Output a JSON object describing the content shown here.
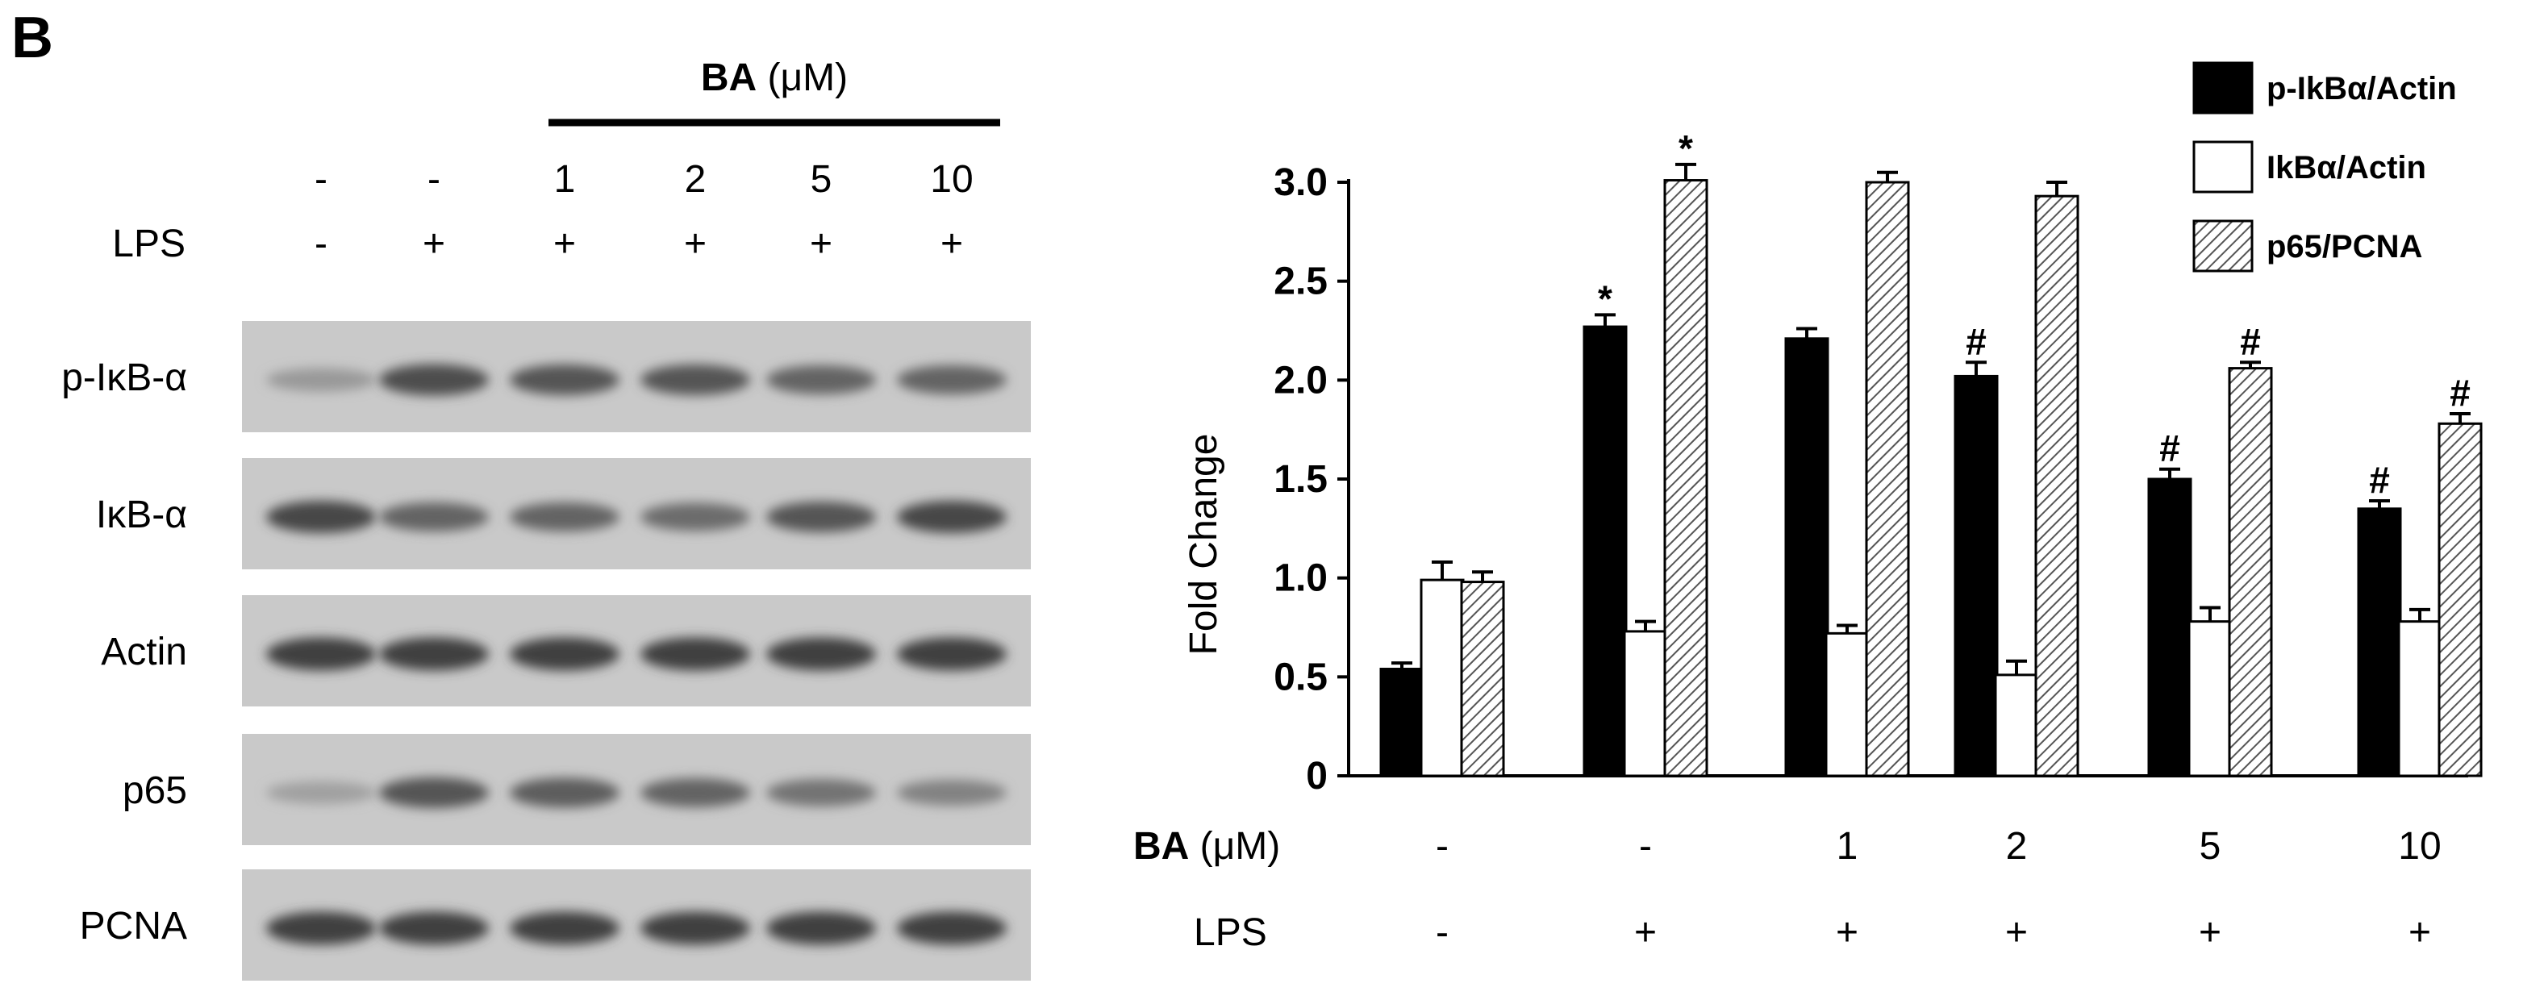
{
  "panel_label": "B",
  "blot": {
    "ba_header": "BA (μM)",
    "ba_values": [
      "-",
      "-",
      "1",
      "2",
      "5",
      "10"
    ],
    "lps_label": "LPS",
    "lps_values": [
      "-",
      "+",
      "+",
      "+",
      "+",
      "+"
    ],
    "rows": [
      {
        "label": "p-IκB-α",
        "intensity": [
          0.25,
          0.75,
          0.7,
          0.7,
          0.6,
          0.6
        ]
      },
      {
        "label": "IκB-α",
        "intensity": [
          0.8,
          0.6,
          0.6,
          0.55,
          0.7,
          0.8
        ]
      },
      {
        "label": "Actin",
        "intensity": [
          0.85,
          0.85,
          0.85,
          0.85,
          0.85,
          0.85
        ]
      },
      {
        "label": "p65",
        "intensity": [
          0.2,
          0.7,
          0.65,
          0.6,
          0.5,
          0.4
        ]
      },
      {
        "label": "PCNA",
        "intensity": [
          0.85,
          0.85,
          0.85,
          0.85,
          0.85,
          0.85
        ]
      }
    ]
  },
  "chart_data": {
    "type": "bar",
    "ylabel": "Fold Change",
    "ylim": [
      0,
      3.0
    ],
    "yticks": [
      "0",
      "0.5",
      "1.0",
      "1.5",
      "2.0",
      "2.5",
      "3.0"
    ],
    "ba_label": "BA (μM)",
    "lps_label": "LPS",
    "ba_categories": [
      "-",
      "-",
      "1",
      "2",
      "5",
      "10"
    ],
    "lps_categories": [
      "-",
      "+",
      "+",
      "+",
      "+",
      "+"
    ],
    "series": [
      {
        "name": "p-IkBα/Actin",
        "fill": "solid",
        "values": [
          0.54,
          2.27,
          2.21,
          2.02,
          1.5,
          1.35
        ],
        "errors": [
          0.03,
          0.06,
          0.05,
          0.07,
          0.05,
          0.04
        ],
        "annotations": [
          "",
          "*",
          "",
          "#",
          "#",
          "#"
        ]
      },
      {
        "name": "IkBα/Actin",
        "fill": "open",
        "values": [
          0.99,
          0.73,
          0.72,
          0.51,
          0.78,
          0.78
        ],
        "errors": [
          0.09,
          0.05,
          0.04,
          0.07,
          0.07,
          0.06
        ],
        "annotations": [
          "",
          "",
          "",
          "",
          "",
          ""
        ]
      },
      {
        "name": "p65/PCNA",
        "fill": "hatch",
        "values": [
          0.98,
          3.01,
          3.0,
          2.93,
          2.06,
          1.78
        ],
        "errors": [
          0.05,
          0.08,
          0.05,
          0.07,
          0.03,
          0.05
        ],
        "annotations": [
          "",
          "*",
          "",
          "",
          "#",
          "#"
        ]
      }
    ],
    "legend_position": "top-right",
    "colors": {
      "solid": "#000000",
      "open": "#ffffff",
      "hatch": "#999999"
    }
  }
}
